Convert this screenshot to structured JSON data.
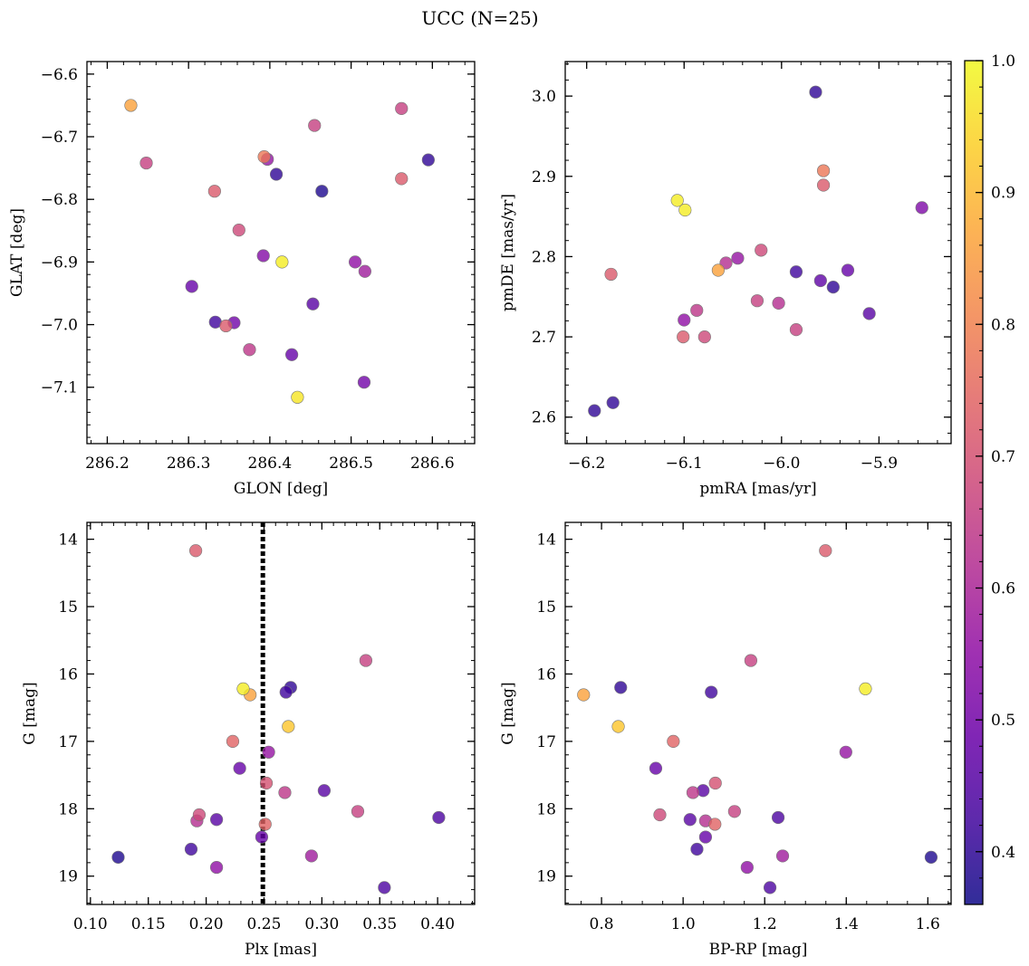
{
  "figure": {
    "title": "UCC (N=25)"
  },
  "colorbar": {
    "vmin": 0.36,
    "vmax": 1.0,
    "ticks": [
      "0.4",
      "0.5",
      "0.6",
      "0.7",
      "0.8",
      "0.9",
      "1.0"
    ],
    "tick_values": [
      0.4,
      0.5,
      0.6,
      0.7,
      0.8,
      0.9,
      1.0
    ],
    "colormap": "plasma"
  },
  "chart_data": [
    {
      "type": "scatter",
      "panel": "glon-glat",
      "xlabel": "GLON [deg]",
      "ylabel": "GLAT [deg]",
      "xlim": [
        286.175,
        286.652
      ],
      "ylim": [
        -7.19,
        -6.58
      ],
      "y_inverted": false,
      "xticks": [
        286.2,
        286.3,
        286.4,
        286.5,
        286.6
      ],
      "xtick_labels": [
        "286.2",
        "286.3",
        "286.4",
        "286.5",
        "286.6"
      ],
      "yticks": [
        -6.6,
        -6.7,
        -6.8,
        -6.9,
        -7.0,
        -7.1
      ],
      "ytick_labels": [
        "−6.6",
        "−6.7",
        "−6.8",
        "−6.9",
        "−7.0",
        "−7.1"
      ],
      "xminor": 0.02,
      "yminor": 0.02,
      "points": [
        {
          "x": 286.229,
          "y": -6.65,
          "c": 0.86
        },
        {
          "x": 286.248,
          "y": -6.742,
          "c": 0.66
        },
        {
          "x": 286.332,
          "y": -6.787,
          "c": 0.72
        },
        {
          "x": 286.393,
          "y": -6.732,
          "c": 0.78
        },
        {
          "x": 286.397,
          "y": -6.736,
          "c": 0.56
        },
        {
          "x": 286.408,
          "y": -6.76,
          "c": 0.4
        },
        {
          "x": 286.455,
          "y": -6.682,
          "c": 0.66
        },
        {
          "x": 286.464,
          "y": -6.787,
          "c": 0.38
        },
        {
          "x": 286.562,
          "y": -6.655,
          "c": 0.66
        },
        {
          "x": 286.562,
          "y": -6.767,
          "c": 0.72
        },
        {
          "x": 286.595,
          "y": -6.737,
          "c": 0.4
        },
        {
          "x": 286.362,
          "y": -6.849,
          "c": 0.68
        },
        {
          "x": 286.392,
          "y": -6.89,
          "c": 0.53
        },
        {
          "x": 286.415,
          "y": -6.9,
          "c": 0.98
        },
        {
          "x": 286.505,
          "y": -6.9,
          "c": 0.55
        },
        {
          "x": 286.517,
          "y": -6.915,
          "c": 0.58
        },
        {
          "x": 286.304,
          "y": -6.939,
          "c": 0.48
        },
        {
          "x": 286.333,
          "y": -6.996,
          "c": 0.42
        },
        {
          "x": 286.356,
          "y": -6.997,
          "c": 0.5
        },
        {
          "x": 286.346,
          "y": -7.002,
          "c": 0.72
        },
        {
          "x": 286.453,
          "y": -6.967,
          "c": 0.46
        },
        {
          "x": 286.375,
          "y": -7.04,
          "c": 0.64
        },
        {
          "x": 286.427,
          "y": -7.048,
          "c": 0.48
        },
        {
          "x": 286.516,
          "y": -7.092,
          "c": 0.5
        },
        {
          "x": 286.434,
          "y": -7.116,
          "c": 0.97
        }
      ]
    },
    {
      "type": "scatter",
      "panel": "pmra-pmde",
      "xlabel": "pmRA [mas/yr]",
      "ylabel": "pmDE [mas/yr]",
      "xlim": [
        -6.222,
        -5.826
      ],
      "ylim": [
        2.567,
        3.043
      ],
      "y_inverted": false,
      "xticks": [
        -6.2,
        -6.1,
        -6.0,
        -5.9
      ],
      "xtick_labels": [
        "−6.2",
        "−6.1",
        "−6.0",
        "−5.9"
      ],
      "yticks": [
        2.6,
        2.7,
        2.8,
        2.9,
        3.0
      ],
      "ytick_labels": [
        "2.6",
        "2.7",
        "2.8",
        "2.9",
        "3.0"
      ],
      "xminor": 0.02,
      "yminor": 0.02,
      "points": [
        {
          "x": -5.965,
          "y": 3.005,
          "c": 0.4
        },
        {
          "x": -5.957,
          "y": 2.907,
          "c": 0.78
        },
        {
          "x": -5.957,
          "y": 2.889,
          "c": 0.72
        },
        {
          "x": -6.107,
          "y": 2.87,
          "c": 0.98
        },
        {
          "x": -6.099,
          "y": 2.858,
          "c": 0.98
        },
        {
          "x": -5.856,
          "y": 2.861,
          "c": 0.52
        },
        {
          "x": -6.175,
          "y": 2.778,
          "c": 0.72
        },
        {
          "x": -6.065,
          "y": 2.783,
          "c": 0.86
        },
        {
          "x": -6.057,
          "y": 2.792,
          "c": 0.62
        },
        {
          "x": -6.045,
          "y": 2.798,
          "c": 0.56
        },
        {
          "x": -6.021,
          "y": 2.808,
          "c": 0.68
        },
        {
          "x": -5.985,
          "y": 2.781,
          "c": 0.42
        },
        {
          "x": -5.96,
          "y": 2.77,
          "c": 0.47
        },
        {
          "x": -5.947,
          "y": 2.762,
          "c": 0.4
        },
        {
          "x": -5.932,
          "y": 2.783,
          "c": 0.48
        },
        {
          "x": -5.91,
          "y": 2.729,
          "c": 0.46
        },
        {
          "x": -6.025,
          "y": 2.745,
          "c": 0.66
        },
        {
          "x": -6.003,
          "y": 2.742,
          "c": 0.62
        },
        {
          "x": -6.087,
          "y": 2.733,
          "c": 0.64
        },
        {
          "x": -6.1,
          "y": 2.721,
          "c": 0.55
        },
        {
          "x": -6.101,
          "y": 2.7,
          "c": 0.72
        },
        {
          "x": -6.079,
          "y": 2.7,
          "c": 0.68
        },
        {
          "x": -5.985,
          "y": 2.709,
          "c": 0.66
        },
        {
          "x": -6.192,
          "y": 2.608,
          "c": 0.4
        },
        {
          "x": -6.173,
          "y": 2.618,
          "c": 0.4
        }
      ]
    },
    {
      "type": "scatter",
      "panel": "plx-g",
      "xlabel": "Plx [mas]",
      "ylabel": "G [mag]",
      "xlim": [
        0.097,
        0.432
      ],
      "ylim": [
        13.75,
        19.42
      ],
      "y_inverted": true,
      "xticks": [
        0.1,
        0.15,
        0.2,
        0.25,
        0.3,
        0.35,
        0.4
      ],
      "xtick_labels": [
        "0.10",
        "0.15",
        "0.20",
        "0.25",
        "0.30",
        "0.35",
        "0.40"
      ],
      "yticks": [
        14,
        15,
        16,
        17,
        18,
        19
      ],
      "ytick_labels": [
        "14",
        "15",
        "16",
        "17",
        "18",
        "19"
      ],
      "xminor": 0.01,
      "yminor": 0.2,
      "vline": {
        "x": 0.249,
        "style": "dotted"
      },
      "points": [
        {
          "x": 0.191,
          "y": 14.17,
          "c": 0.72
        },
        {
          "x": 0.338,
          "y": 15.8,
          "c": 0.66
        },
        {
          "x": 0.273,
          "y": 16.2,
          "c": 0.4
        },
        {
          "x": 0.269,
          "y": 16.27,
          "c": 0.42
        },
        {
          "x": 0.232,
          "y": 16.22,
          "c": 0.98
        },
        {
          "x": 0.238,
          "y": 16.31,
          "c": 0.86
        },
        {
          "x": 0.271,
          "y": 16.78,
          "c": 0.92
        },
        {
          "x": 0.223,
          "y": 17.0,
          "c": 0.74
        },
        {
          "x": 0.254,
          "y": 17.16,
          "c": 0.56
        },
        {
          "x": 0.229,
          "y": 17.4,
          "c": 0.48
        },
        {
          "x": 0.252,
          "y": 17.62,
          "c": 0.7
        },
        {
          "x": 0.268,
          "y": 17.76,
          "c": 0.64
        },
        {
          "x": 0.302,
          "y": 17.73,
          "c": 0.46
        },
        {
          "x": 0.331,
          "y": 18.04,
          "c": 0.66
        },
        {
          "x": 0.401,
          "y": 18.13,
          "c": 0.44
        },
        {
          "x": 0.194,
          "y": 18.09,
          "c": 0.68
        },
        {
          "x": 0.192,
          "y": 18.18,
          "c": 0.62
        },
        {
          "x": 0.209,
          "y": 18.16,
          "c": 0.46
        },
        {
          "x": 0.251,
          "y": 18.23,
          "c": 0.74
        },
        {
          "x": 0.248,
          "y": 18.42,
          "c": 0.48
        },
        {
          "x": 0.187,
          "y": 18.6,
          "c": 0.42
        },
        {
          "x": 0.124,
          "y": 18.72,
          "c": 0.38
        },
        {
          "x": 0.291,
          "y": 18.7,
          "c": 0.58
        },
        {
          "x": 0.209,
          "y": 18.87,
          "c": 0.55
        },
        {
          "x": 0.354,
          "y": 19.17,
          "c": 0.44
        }
      ]
    },
    {
      "type": "scatter",
      "panel": "bprp-g",
      "xlabel": "BP-RP [mag]",
      "ylabel": "G [mag]",
      "xlim": [
        0.711,
        1.657
      ],
      "ylim": [
        13.75,
        19.42
      ],
      "y_inverted": true,
      "xticks": [
        0.8,
        1.0,
        1.2,
        1.4,
        1.6
      ],
      "xtick_labels": [
        "0.8",
        "1.0",
        "1.2",
        "1.4",
        "1.6"
      ],
      "yticks": [
        14,
        15,
        16,
        17,
        18,
        19
      ],
      "ytick_labels": [
        "14",
        "15",
        "16",
        "17",
        "18",
        "19"
      ],
      "xminor": 0.05,
      "yminor": 0.2,
      "points": [
        {
          "x": 1.349,
          "y": 14.17,
          "c": 0.72
        },
        {
          "x": 1.166,
          "y": 15.8,
          "c": 0.66
        },
        {
          "x": 0.847,
          "y": 16.2,
          "c": 0.4
        },
        {
          "x": 1.069,
          "y": 16.27,
          "c": 0.42
        },
        {
          "x": 1.447,
          "y": 16.22,
          "c": 0.98
        },
        {
          "x": 0.756,
          "y": 16.31,
          "c": 0.86
        },
        {
          "x": 0.841,
          "y": 16.78,
          "c": 0.92
        },
        {
          "x": 0.976,
          "y": 17.0,
          "c": 0.74
        },
        {
          "x": 1.399,
          "y": 17.16,
          "c": 0.56
        },
        {
          "x": 0.933,
          "y": 17.4,
          "c": 0.48
        },
        {
          "x": 1.079,
          "y": 17.62,
          "c": 0.7
        },
        {
          "x": 1.024,
          "y": 17.76,
          "c": 0.64
        },
        {
          "x": 1.049,
          "y": 17.73,
          "c": 0.46
        },
        {
          "x": 1.126,
          "y": 18.04,
          "c": 0.66
        },
        {
          "x": 1.233,
          "y": 18.13,
          "c": 0.44
        },
        {
          "x": 0.943,
          "y": 18.09,
          "c": 0.68
        },
        {
          "x": 1.055,
          "y": 18.18,
          "c": 0.62
        },
        {
          "x": 1.017,
          "y": 18.16,
          "c": 0.46
        },
        {
          "x": 1.078,
          "y": 18.23,
          "c": 0.74
        },
        {
          "x": 1.055,
          "y": 18.42,
          "c": 0.48
        },
        {
          "x": 1.034,
          "y": 18.6,
          "c": 0.42
        },
        {
          "x": 1.608,
          "y": 18.72,
          "c": 0.38
        },
        {
          "x": 1.244,
          "y": 18.7,
          "c": 0.58
        },
        {
          "x": 1.157,
          "y": 18.87,
          "c": 0.55
        },
        {
          "x": 1.213,
          "y": 19.17,
          "c": 0.44
        }
      ]
    }
  ]
}
